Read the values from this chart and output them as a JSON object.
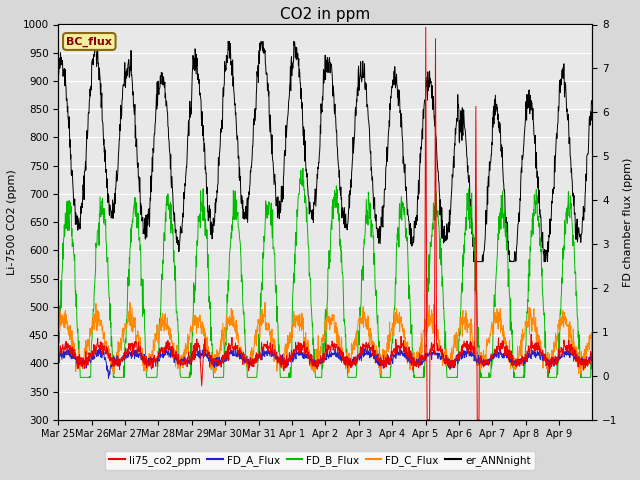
{
  "title": "CO2 in ppm",
  "ylabel_left": "Li-7500 CO2 (ppm)",
  "ylabel_right": "FD chamber flux (ppm)",
  "ylim_left": [
    300,
    1000
  ],
  "ylim_right": [
    -1.0,
    8.0
  ],
  "yticks_left": [
    300,
    350,
    400,
    450,
    500,
    550,
    600,
    650,
    700,
    750,
    800,
    850,
    900,
    950,
    1000
  ],
  "yticks_right": [
    -1.0,
    0.0,
    1.0,
    2.0,
    3.0,
    4.0,
    5.0,
    6.0,
    7.0,
    8.0
  ],
  "xlabel_ticks": [
    "Mar 25",
    "Mar 26",
    "Mar 27",
    "Mar 28",
    "Mar 29",
    "Mar 30",
    "Mar 31",
    "Apr 1",
    "Apr 2",
    "Apr 3",
    "Apr 4",
    "Apr 5",
    "Apr 6",
    "Apr 7",
    "Apr 8",
    "Apr 9"
  ],
  "fig_facecolor": "#d8d8d8",
  "axes_facecolor": "#e8e8e8",
  "line_colors": {
    "li75": "#ee0000",
    "fda": "#2222cc",
    "fdb": "#00bb00",
    "fdc": "#ff8800",
    "er_ann": "#000000"
  },
  "legend_labels": [
    "li75_co2_ppm",
    "FD_A_Flux",
    "FD_B_Flux",
    "FD_C_Flux",
    "er_ANNnight"
  ],
  "title_fontsize": 11
}
